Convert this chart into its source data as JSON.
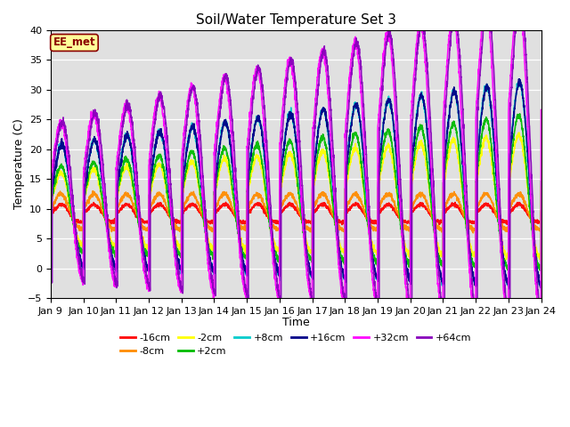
{
  "title": "Soil/Water Temperature Set 3",
  "xlabel": "Time",
  "ylabel": "Temperature (C)",
  "ylim": [
    -5,
    40
  ],
  "xlim": [
    0,
    15
  ],
  "watermark": "EE_met",
  "x_tick_labels": [
    "Jan 9",
    "Jan 10",
    "Jan 11",
    "Jan 12",
    "Jan 13",
    "Jan 14",
    "Jan 15",
    "Jan 16",
    "Jan 17",
    "Jan 18",
    "Jan 19",
    "Jan 20",
    "Jan 21",
    "Jan 22",
    "Jan 23",
    "Jan 24"
  ],
  "series": {
    "-16cm": {
      "color": "#ff0000",
      "lw": 1.2
    },
    "-8cm": {
      "color": "#ff8c00",
      "lw": 1.2
    },
    "-2cm": {
      "color": "#ffff00",
      "lw": 1.2
    },
    "+2cm": {
      "color": "#00bb00",
      "lw": 1.2
    },
    "+8cm": {
      "color": "#00cccc",
      "lw": 1.2
    },
    "+16cm": {
      "color": "#000088",
      "lw": 1.2
    },
    "+32cm": {
      "color": "#ff00ff",
      "lw": 1.2
    },
    "+64cm": {
      "color": "#8800bb",
      "lw": 1.2
    }
  },
  "bg_color": "#e0e0e0",
  "fig_color": "#ffffff",
  "legend_ncol_row1": 6,
  "legend_ncol_row2": 2
}
